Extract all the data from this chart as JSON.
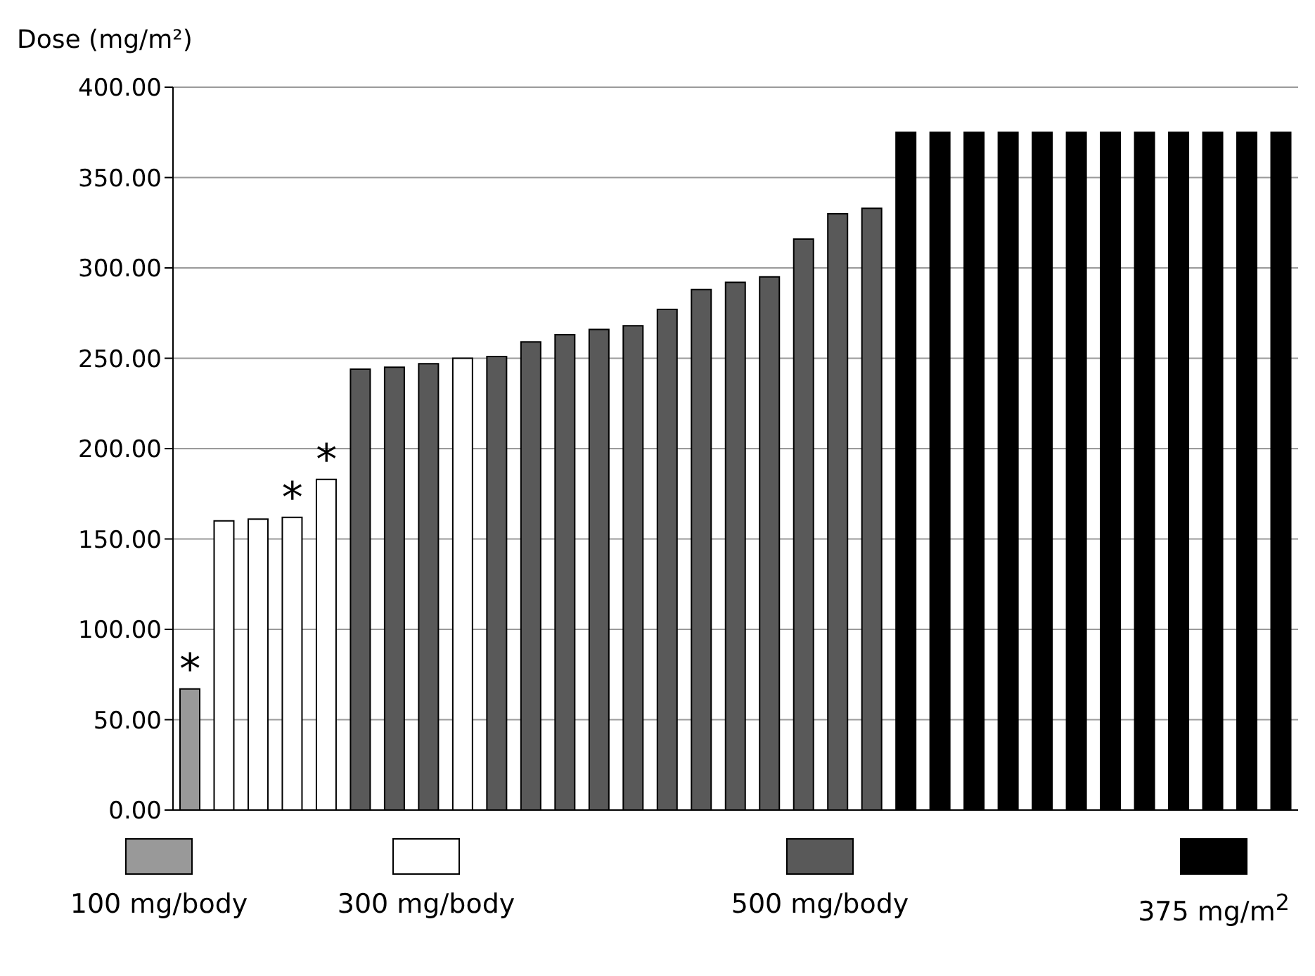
{
  "chart_data": {
    "type": "bar",
    "ylabel": "Dose (mg/m²)",
    "categories": [
      null,
      null,
      null,
      null,
      null,
      null,
      null,
      null,
      null,
      null,
      null,
      null,
      null,
      null,
      null,
      null,
      null,
      null,
      null,
      null,
      null,
      null,
      null,
      null,
      null,
      null,
      null,
      null,
      null,
      null,
      null,
      null,
      null
    ],
    "series": [
      {
        "name": "100 mg/body",
        "color": "#999999",
        "values": [
          67,
          null,
          null,
          null,
          null,
          null,
          null,
          null,
          null,
          null,
          null,
          null,
          null,
          null,
          null,
          null,
          null,
          null,
          null,
          null,
          null,
          null,
          null,
          null,
          null,
          null,
          null,
          null,
          null,
          null,
          null,
          null,
          null
        ]
      },
      {
        "name": "300 mg/body",
        "color": "#ffffff",
        "values": [
          null,
          160,
          161,
          162,
          183,
          null,
          null,
          null,
          250,
          null,
          null,
          null,
          null,
          null,
          null,
          null,
          null,
          null,
          null,
          null,
          null,
          null,
          null,
          null,
          null,
          null,
          null,
          null,
          null,
          null,
          null,
          null,
          null
        ]
      },
      {
        "name": "500 mg/body",
        "color": "#595959",
        "values": [
          null,
          null,
          null,
          null,
          null,
          244,
          245,
          247,
          null,
          251,
          259,
          263,
          266,
          268,
          277,
          288,
          292,
          295,
          316,
          330,
          333,
          null,
          null,
          null,
          null,
          null,
          null,
          null,
          null,
          null,
          null,
          null,
          null
        ]
      },
      {
        "name": "375 mg/m$^{2}$",
        "color": "#000000",
        "values": [
          null,
          null,
          null,
          null,
          null,
          null,
          null,
          null,
          null,
          null,
          null,
          null,
          null,
          null,
          null,
          null,
          null,
          null,
          null,
          null,
          null,
          375,
          375,
          375,
          375,
          375,
          375,
          375,
          375,
          375,
          375,
          375,
          375
        ]
      }
    ],
    "ylim": [
      0,
      400
    ],
    "yticks": [
      {
        "value": 0,
        "label": "0.00"
      },
      {
        "value": 50,
        "label": "50.00"
      },
      {
        "value": 100,
        "label": "100.00"
      },
      {
        "value": 150,
        "label": "150.00"
      },
      {
        "value": 200,
        "label": "200.00"
      },
      {
        "value": 250,
        "label": "250.00"
      },
      {
        "value": 300,
        "label": "300.00"
      },
      {
        "value": 350,
        "label": "350.00"
      },
      {
        "value": 400,
        "label": "400.00"
      }
    ],
    "grid": "y",
    "legend": "bottom",
    "tick_labels": "y",
    "annotations": [
      {
        "text": "*",
        "y": 67
      },
      {
        "text": "*",
        "y": 162
      },
      {
        "text": "*",
        "y": 183
      }
    ]
  }
}
